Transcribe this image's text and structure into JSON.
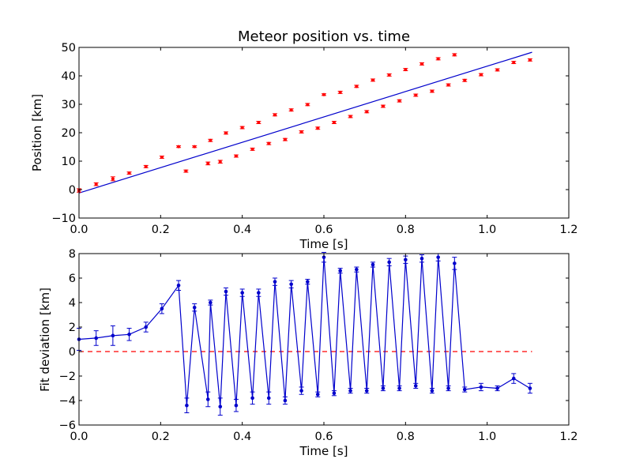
{
  "chart_data": [
    {
      "type": "scatter",
      "title": "Meteor position vs. time",
      "xlabel": "Time [s]",
      "ylabel": "Position [km]",
      "xlim": [
        0.0,
        1.2
      ],
      "ylim": [
        -10,
        50
      ],
      "xticks": [
        "0.0",
        "0.2",
        "0.4",
        "0.6",
        "0.8",
        "1.0",
        "1.2"
      ],
      "yticks": [
        "−10",
        "0",
        "10",
        "20",
        "30",
        "40",
        "50"
      ],
      "grid": false,
      "colors": {
        "points": "#ff0000",
        "fit": "#0000cc"
      },
      "points": [
        [
          0.0,
          -0.3,
          0.6
        ],
        [
          0.042,
          1.9,
          0.5
        ],
        [
          0.083,
          3.8,
          0.7
        ],
        [
          0.123,
          5.8,
          0.4
        ],
        [
          0.164,
          8.1,
          0.4
        ],
        [
          0.203,
          11.4,
          0.4
        ],
        [
          0.244,
          15.1,
          0.3
        ],
        [
          0.262,
          6.5,
          0.4
        ],
        [
          0.283,
          15.1,
          0.3
        ],
        [
          0.316,
          9.2,
          0.5
        ],
        [
          0.322,
          17.3,
          0.4
        ],
        [
          0.346,
          9.8,
          0.5
        ],
        [
          0.36,
          19.9,
          0.4
        ],
        [
          0.385,
          11.8,
          0.4
        ],
        [
          0.4,
          21.8,
          0.4
        ],
        [
          0.425,
          14.2,
          0.4
        ],
        [
          0.44,
          23.6,
          0.4
        ],
        [
          0.465,
          16.2,
          0.4
        ],
        [
          0.48,
          26.3,
          0.4
        ],
        [
          0.505,
          17.6,
          0.4
        ],
        [
          0.52,
          28.0,
          0.4
        ],
        [
          0.545,
          20.3,
          0.4
        ],
        [
          0.56,
          29.9,
          0.4
        ],
        [
          0.585,
          21.6,
          0.4
        ],
        [
          0.6,
          33.4,
          0.3
        ],
        [
          0.625,
          23.6,
          0.4
        ],
        [
          0.64,
          34.2,
          0.4
        ],
        [
          0.665,
          25.7,
          0.4
        ],
        [
          0.68,
          36.3,
          0.4
        ],
        [
          0.705,
          27.4,
          0.4
        ],
        [
          0.72,
          38.5,
          0.4
        ],
        [
          0.745,
          29.3,
          0.4
        ],
        [
          0.76,
          40.3,
          0.4
        ],
        [
          0.785,
          31.2,
          0.4
        ],
        [
          0.8,
          42.2,
          0.4
        ],
        [
          0.825,
          33.2,
          0.4
        ],
        [
          0.84,
          44.2,
          0.4
        ],
        [
          0.865,
          34.6,
          0.4
        ],
        [
          0.88,
          46.0,
          0.4
        ],
        [
          0.905,
          36.8,
          0.4
        ],
        [
          0.92,
          47.4,
          0.4
        ],
        [
          0.945,
          38.4,
          0.4
        ],
        [
          0.985,
          40.4,
          0.4
        ],
        [
          1.025,
          42.1,
          0.4
        ],
        [
          1.065,
          44.7,
          0.4
        ],
        [
          1.105,
          45.6,
          0.4
        ]
      ],
      "fit_line": {
        "x": [
          0.0,
          1.11
        ],
        "y": [
          -1.2,
          48.3
        ]
      }
    },
    {
      "type": "line",
      "title": "",
      "xlabel": "Time [s]",
      "ylabel": "Fit deviation [km]",
      "xlim": [
        0.0,
        1.2
      ],
      "ylim": [
        -6,
        8
      ],
      "xticks": [
        "0.0",
        "0.2",
        "0.4",
        "0.6",
        "0.8",
        "1.0",
        "1.2"
      ],
      "yticks": [
        "−6",
        "−4",
        "−2",
        "0",
        "2",
        "4",
        "6",
        "8"
      ],
      "grid": false,
      "colors": {
        "line": "#0000cc",
        "zero": "#ff0000"
      },
      "zero_line": {
        "x": [
          0.0,
          1.11
        ],
        "y": 0
      },
      "points": [
        [
          0.0,
          1.0,
          0.9
        ],
        [
          0.042,
          1.1,
          0.6
        ],
        [
          0.083,
          1.3,
          0.8
        ],
        [
          0.123,
          1.4,
          0.5
        ],
        [
          0.164,
          2.0,
          0.4
        ],
        [
          0.203,
          3.5,
          0.4
        ],
        [
          0.244,
          5.4,
          0.4
        ],
        [
          0.264,
          -4.4,
          0.6
        ],
        [
          0.283,
          3.6,
          0.3
        ],
        [
          0.316,
          -3.9,
          0.6
        ],
        [
          0.322,
          4.0,
          0.2
        ],
        [
          0.346,
          -4.5,
          0.7
        ],
        [
          0.36,
          4.9,
          0.3
        ],
        [
          0.385,
          -4.4,
          0.5
        ],
        [
          0.4,
          4.8,
          0.3
        ],
        [
          0.425,
          -3.8,
          0.5
        ],
        [
          0.44,
          4.8,
          0.3
        ],
        [
          0.465,
          -3.8,
          0.5
        ],
        [
          0.48,
          5.7,
          0.3
        ],
        [
          0.505,
          -4.0,
          0.3
        ],
        [
          0.52,
          5.5,
          0.3
        ],
        [
          0.545,
          -3.2,
          0.3
        ],
        [
          0.56,
          5.7,
          0.2
        ],
        [
          0.585,
          -3.5,
          0.2
        ],
        [
          0.6,
          7.7,
          0.4
        ],
        [
          0.625,
          -3.4,
          0.2
        ],
        [
          0.64,
          6.6,
          0.2
        ],
        [
          0.665,
          -3.2,
          0.2
        ],
        [
          0.68,
          6.7,
          0.2
        ],
        [
          0.705,
          -3.2,
          0.2
        ],
        [
          0.72,
          7.1,
          0.2
        ],
        [
          0.745,
          -3.0,
          0.2
        ],
        [
          0.76,
          7.3,
          0.3
        ],
        [
          0.785,
          -3.0,
          0.2
        ],
        [
          0.8,
          7.5,
          0.3
        ],
        [
          0.825,
          -2.8,
          0.2
        ],
        [
          0.84,
          7.6,
          0.3
        ],
        [
          0.865,
          -3.2,
          0.2
        ],
        [
          0.88,
          7.7,
          0.3
        ],
        [
          0.905,
          -3.0,
          0.2
        ],
        [
          0.92,
          7.2,
          0.5
        ],
        [
          0.945,
          -3.1,
          0.2
        ],
        [
          0.985,
          -2.9,
          0.3
        ],
        [
          1.025,
          -3.0,
          0.2
        ],
        [
          1.065,
          -2.2,
          0.4
        ],
        [
          1.105,
          -3.0,
          0.4
        ]
      ]
    }
  ]
}
